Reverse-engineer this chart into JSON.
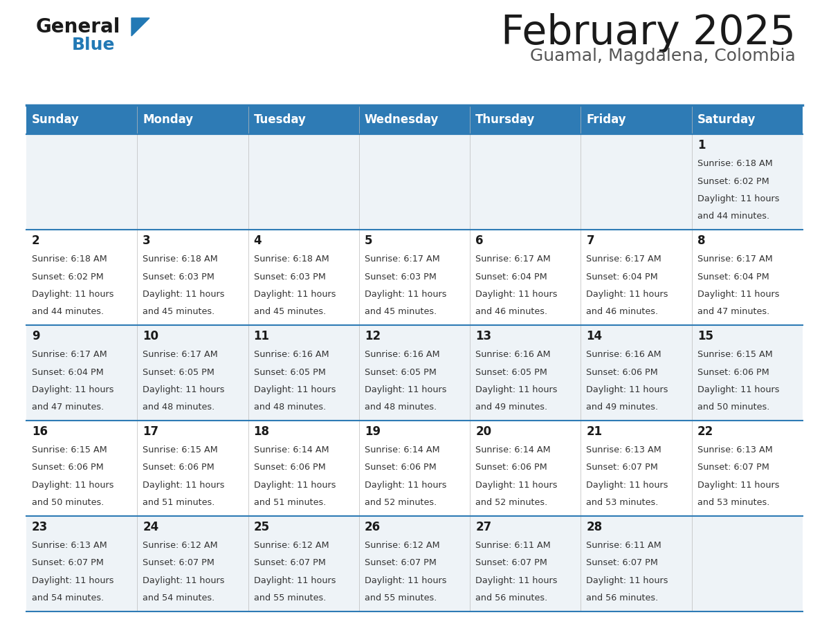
{
  "title": "February 2025",
  "subtitle": "Guamal, Magdalena, Colombia",
  "days_of_week": [
    "Sunday",
    "Monday",
    "Tuesday",
    "Wednesday",
    "Thursday",
    "Friday",
    "Saturday"
  ],
  "header_bg": "#2E7BB5",
  "header_text": "#FFFFFF",
  "row0_bg": "#EEF3F7",
  "row1_bg": "#FFFFFF",
  "border_color": "#2E7BB5",
  "day_num_color": "#1A1A1A",
  "text_color": "#333333",
  "title_color": "#1A1A1A",
  "subtitle_color": "#555555",
  "logo_general_color": "#1A1A1A",
  "logo_blue_color": "#2279B5",
  "calendar_data": [
    [
      null,
      null,
      null,
      null,
      null,
      null,
      {
        "day": 1,
        "sunrise": "6:18 AM",
        "sunset": "6:02 PM",
        "daylight": "11 hours",
        "daylight2": "and 44 minutes."
      }
    ],
    [
      {
        "day": 2,
        "sunrise": "6:18 AM",
        "sunset": "6:02 PM",
        "daylight": "11 hours",
        "daylight2": "and 44 minutes."
      },
      {
        "day": 3,
        "sunrise": "6:18 AM",
        "sunset": "6:03 PM",
        "daylight": "11 hours",
        "daylight2": "and 45 minutes."
      },
      {
        "day": 4,
        "sunrise": "6:18 AM",
        "sunset": "6:03 PM",
        "daylight": "11 hours",
        "daylight2": "and 45 minutes."
      },
      {
        "day": 5,
        "sunrise": "6:17 AM",
        "sunset": "6:03 PM",
        "daylight": "11 hours",
        "daylight2": "and 45 minutes."
      },
      {
        "day": 6,
        "sunrise": "6:17 AM",
        "sunset": "6:04 PM",
        "daylight": "11 hours",
        "daylight2": "and 46 minutes."
      },
      {
        "day": 7,
        "sunrise": "6:17 AM",
        "sunset": "6:04 PM",
        "daylight": "11 hours",
        "daylight2": "and 46 minutes."
      },
      {
        "day": 8,
        "sunrise": "6:17 AM",
        "sunset": "6:04 PM",
        "daylight": "11 hours",
        "daylight2": "and 47 minutes."
      }
    ],
    [
      {
        "day": 9,
        "sunrise": "6:17 AM",
        "sunset": "6:04 PM",
        "daylight": "11 hours",
        "daylight2": "and 47 minutes."
      },
      {
        "day": 10,
        "sunrise": "6:17 AM",
        "sunset": "6:05 PM",
        "daylight": "11 hours",
        "daylight2": "and 48 minutes."
      },
      {
        "day": 11,
        "sunrise": "6:16 AM",
        "sunset": "6:05 PM",
        "daylight": "11 hours",
        "daylight2": "and 48 minutes."
      },
      {
        "day": 12,
        "sunrise": "6:16 AM",
        "sunset": "6:05 PM",
        "daylight": "11 hours",
        "daylight2": "and 48 minutes."
      },
      {
        "day": 13,
        "sunrise": "6:16 AM",
        "sunset": "6:05 PM",
        "daylight": "11 hours",
        "daylight2": "and 49 minutes."
      },
      {
        "day": 14,
        "sunrise": "6:16 AM",
        "sunset": "6:06 PM",
        "daylight": "11 hours",
        "daylight2": "and 49 minutes."
      },
      {
        "day": 15,
        "sunrise": "6:15 AM",
        "sunset": "6:06 PM",
        "daylight": "11 hours",
        "daylight2": "and 50 minutes."
      }
    ],
    [
      {
        "day": 16,
        "sunrise": "6:15 AM",
        "sunset": "6:06 PM",
        "daylight": "11 hours",
        "daylight2": "and 50 minutes."
      },
      {
        "day": 17,
        "sunrise": "6:15 AM",
        "sunset": "6:06 PM",
        "daylight": "11 hours",
        "daylight2": "and 51 minutes."
      },
      {
        "day": 18,
        "sunrise": "6:14 AM",
        "sunset": "6:06 PM",
        "daylight": "11 hours",
        "daylight2": "and 51 minutes."
      },
      {
        "day": 19,
        "sunrise": "6:14 AM",
        "sunset": "6:06 PM",
        "daylight": "11 hours",
        "daylight2": "and 52 minutes."
      },
      {
        "day": 20,
        "sunrise": "6:14 AM",
        "sunset": "6:06 PM",
        "daylight": "11 hours",
        "daylight2": "and 52 minutes."
      },
      {
        "day": 21,
        "sunrise": "6:13 AM",
        "sunset": "6:07 PM",
        "daylight": "11 hours",
        "daylight2": "and 53 minutes."
      },
      {
        "day": 22,
        "sunrise": "6:13 AM",
        "sunset": "6:07 PM",
        "daylight": "11 hours",
        "daylight2": "and 53 minutes."
      }
    ],
    [
      {
        "day": 23,
        "sunrise": "6:13 AM",
        "sunset": "6:07 PM",
        "daylight": "11 hours",
        "daylight2": "and 54 minutes."
      },
      {
        "day": 24,
        "sunrise": "6:12 AM",
        "sunset": "6:07 PM",
        "daylight": "11 hours",
        "daylight2": "and 54 minutes."
      },
      {
        "day": 25,
        "sunrise": "6:12 AM",
        "sunset": "6:07 PM",
        "daylight": "11 hours",
        "daylight2": "and 55 minutes."
      },
      {
        "day": 26,
        "sunrise": "6:12 AM",
        "sunset": "6:07 PM",
        "daylight": "11 hours",
        "daylight2": "and 55 minutes."
      },
      {
        "day": 27,
        "sunrise": "6:11 AM",
        "sunset": "6:07 PM",
        "daylight": "11 hours",
        "daylight2": "and 56 minutes."
      },
      {
        "day": 28,
        "sunrise": "6:11 AM",
        "sunset": "6:07 PM",
        "daylight": "11 hours",
        "daylight2": "and 56 minutes."
      },
      null
    ]
  ],
  "fig_width": 11.88,
  "fig_height": 9.18,
  "dpi": 100
}
